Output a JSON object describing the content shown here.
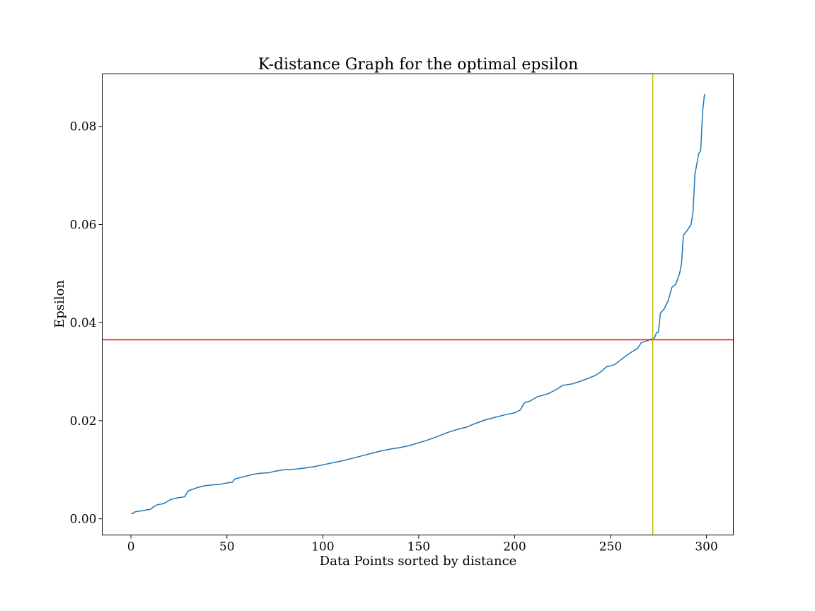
{
  "chart_data": {
    "type": "line",
    "title": "K-distance Graph for the optimal epsilon",
    "xlabel": "Data Points sorted by distance",
    "ylabel": "Epsilon",
    "xlim": [
      -15,
      314
    ],
    "ylim": [
      -0.0033,
      0.0907
    ],
    "x_ticks": [
      0,
      50,
      100,
      150,
      200,
      250,
      300
    ],
    "x_tick_labels": [
      "0",
      "50",
      "100",
      "150",
      "200",
      "250",
      "300"
    ],
    "y_ticks": [
      0.0,
      0.02,
      0.04,
      0.06,
      0.08
    ],
    "y_tick_labels": [
      "0.00",
      "0.02",
      "0.04",
      "0.06",
      "0.08"
    ],
    "grid": false,
    "colors": {
      "series": "#1f77b4",
      "hline": "#ff0000",
      "vline": "#bfbf00"
    },
    "reference_lines": {
      "horizontal_y": 0.0365,
      "vertical_x": 272
    },
    "series": [
      {
        "points": [
          [
            0,
            0.001
          ],
          [
            1,
            0.0011
          ],
          [
            2,
            0.0014
          ],
          [
            5,
            0.0016
          ],
          [
            8,
            0.0018
          ],
          [
            10,
            0.0019
          ],
          [
            12,
            0.0025
          ],
          [
            14,
            0.0029
          ],
          [
            16,
            0.003
          ],
          [
            18,
            0.0033
          ],
          [
            20,
            0.0038
          ],
          [
            22,
            0.0041
          ],
          [
            25,
            0.0043
          ],
          [
            28,
            0.0045
          ],
          [
            29,
            0.0052
          ],
          [
            30,
            0.0057
          ],
          [
            32,
            0.006
          ],
          [
            35,
            0.0064
          ],
          [
            38,
            0.0067
          ],
          [
            42,
            0.0069
          ],
          [
            46,
            0.007
          ],
          [
            50,
            0.0073
          ],
          [
            53,
            0.0075
          ],
          [
            54,
            0.0081
          ],
          [
            56,
            0.0083
          ],
          [
            60,
            0.0087
          ],
          [
            64,
            0.0091
          ],
          [
            68,
            0.0093
          ],
          [
            72,
            0.0094
          ],
          [
            75,
            0.0097
          ],
          [
            80,
            0.01
          ],
          [
            85,
            0.0101
          ],
          [
            90,
            0.0103
          ],
          [
            95,
            0.0106
          ],
          [
            100,
            0.011
          ],
          [
            105,
            0.0114
          ],
          [
            110,
            0.0118
          ],
          [
            115,
            0.0123
          ],
          [
            120,
            0.0128
          ],
          [
            125,
            0.0133
          ],
          [
            130,
            0.0138
          ],
          [
            135,
            0.0142
          ],
          [
            140,
            0.0145
          ],
          [
            145,
            0.0149
          ],
          [
            150,
            0.0155
          ],
          [
            155,
            0.0161
          ],
          [
            160,
            0.0168
          ],
          [
            165,
            0.0176
          ],
          [
            170,
            0.0182
          ],
          [
            175,
            0.0187
          ],
          [
            180,
            0.0195
          ],
          [
            185,
            0.0202
          ],
          [
            190,
            0.0207
          ],
          [
            195,
            0.0212
          ],
          [
            200,
            0.0216
          ],
          [
            203,
            0.0222
          ],
          [
            205,
            0.0236
          ],
          [
            208,
            0.024
          ],
          [
            212,
            0.0249
          ],
          [
            215,
            0.0252
          ],
          [
            218,
            0.0256
          ],
          [
            222,
            0.0264
          ],
          [
            225,
            0.0272
          ],
          [
            230,
            0.0275
          ],
          [
            234,
            0.028
          ],
          [
            238,
            0.0286
          ],
          [
            242,
            0.0292
          ],
          [
            245,
            0.03
          ],
          [
            248,
            0.031
          ],
          [
            252,
            0.0314
          ],
          [
            255,
            0.0323
          ],
          [
            258,
            0.0332
          ],
          [
            261,
            0.034
          ],
          [
            264,
            0.0347
          ],
          [
            266,
            0.0359
          ],
          [
            269,
            0.0363
          ],
          [
            271,
            0.0366
          ],
          [
            273,
            0.0369
          ],
          [
            274,
            0.038
          ],
          [
            275,
            0.038
          ],
          [
            276,
            0.0419
          ],
          [
            278,
            0.0428
          ],
          [
            280,
            0.0444
          ],
          [
            282,
            0.0472
          ],
          [
            284,
            0.0478
          ],
          [
            286,
            0.05
          ],
          [
            287,
            0.052
          ],
          [
            288,
            0.0578
          ],
          [
            290,
            0.0588
          ],
          [
            292,
            0.06
          ],
          [
            293,
            0.0625
          ],
          [
            294,
            0.0702
          ],
          [
            296,
            0.0745
          ],
          [
            297,
            0.075
          ],
          [
            298,
            0.083
          ],
          [
            299,
            0.0866
          ]
        ]
      }
    ]
  }
}
